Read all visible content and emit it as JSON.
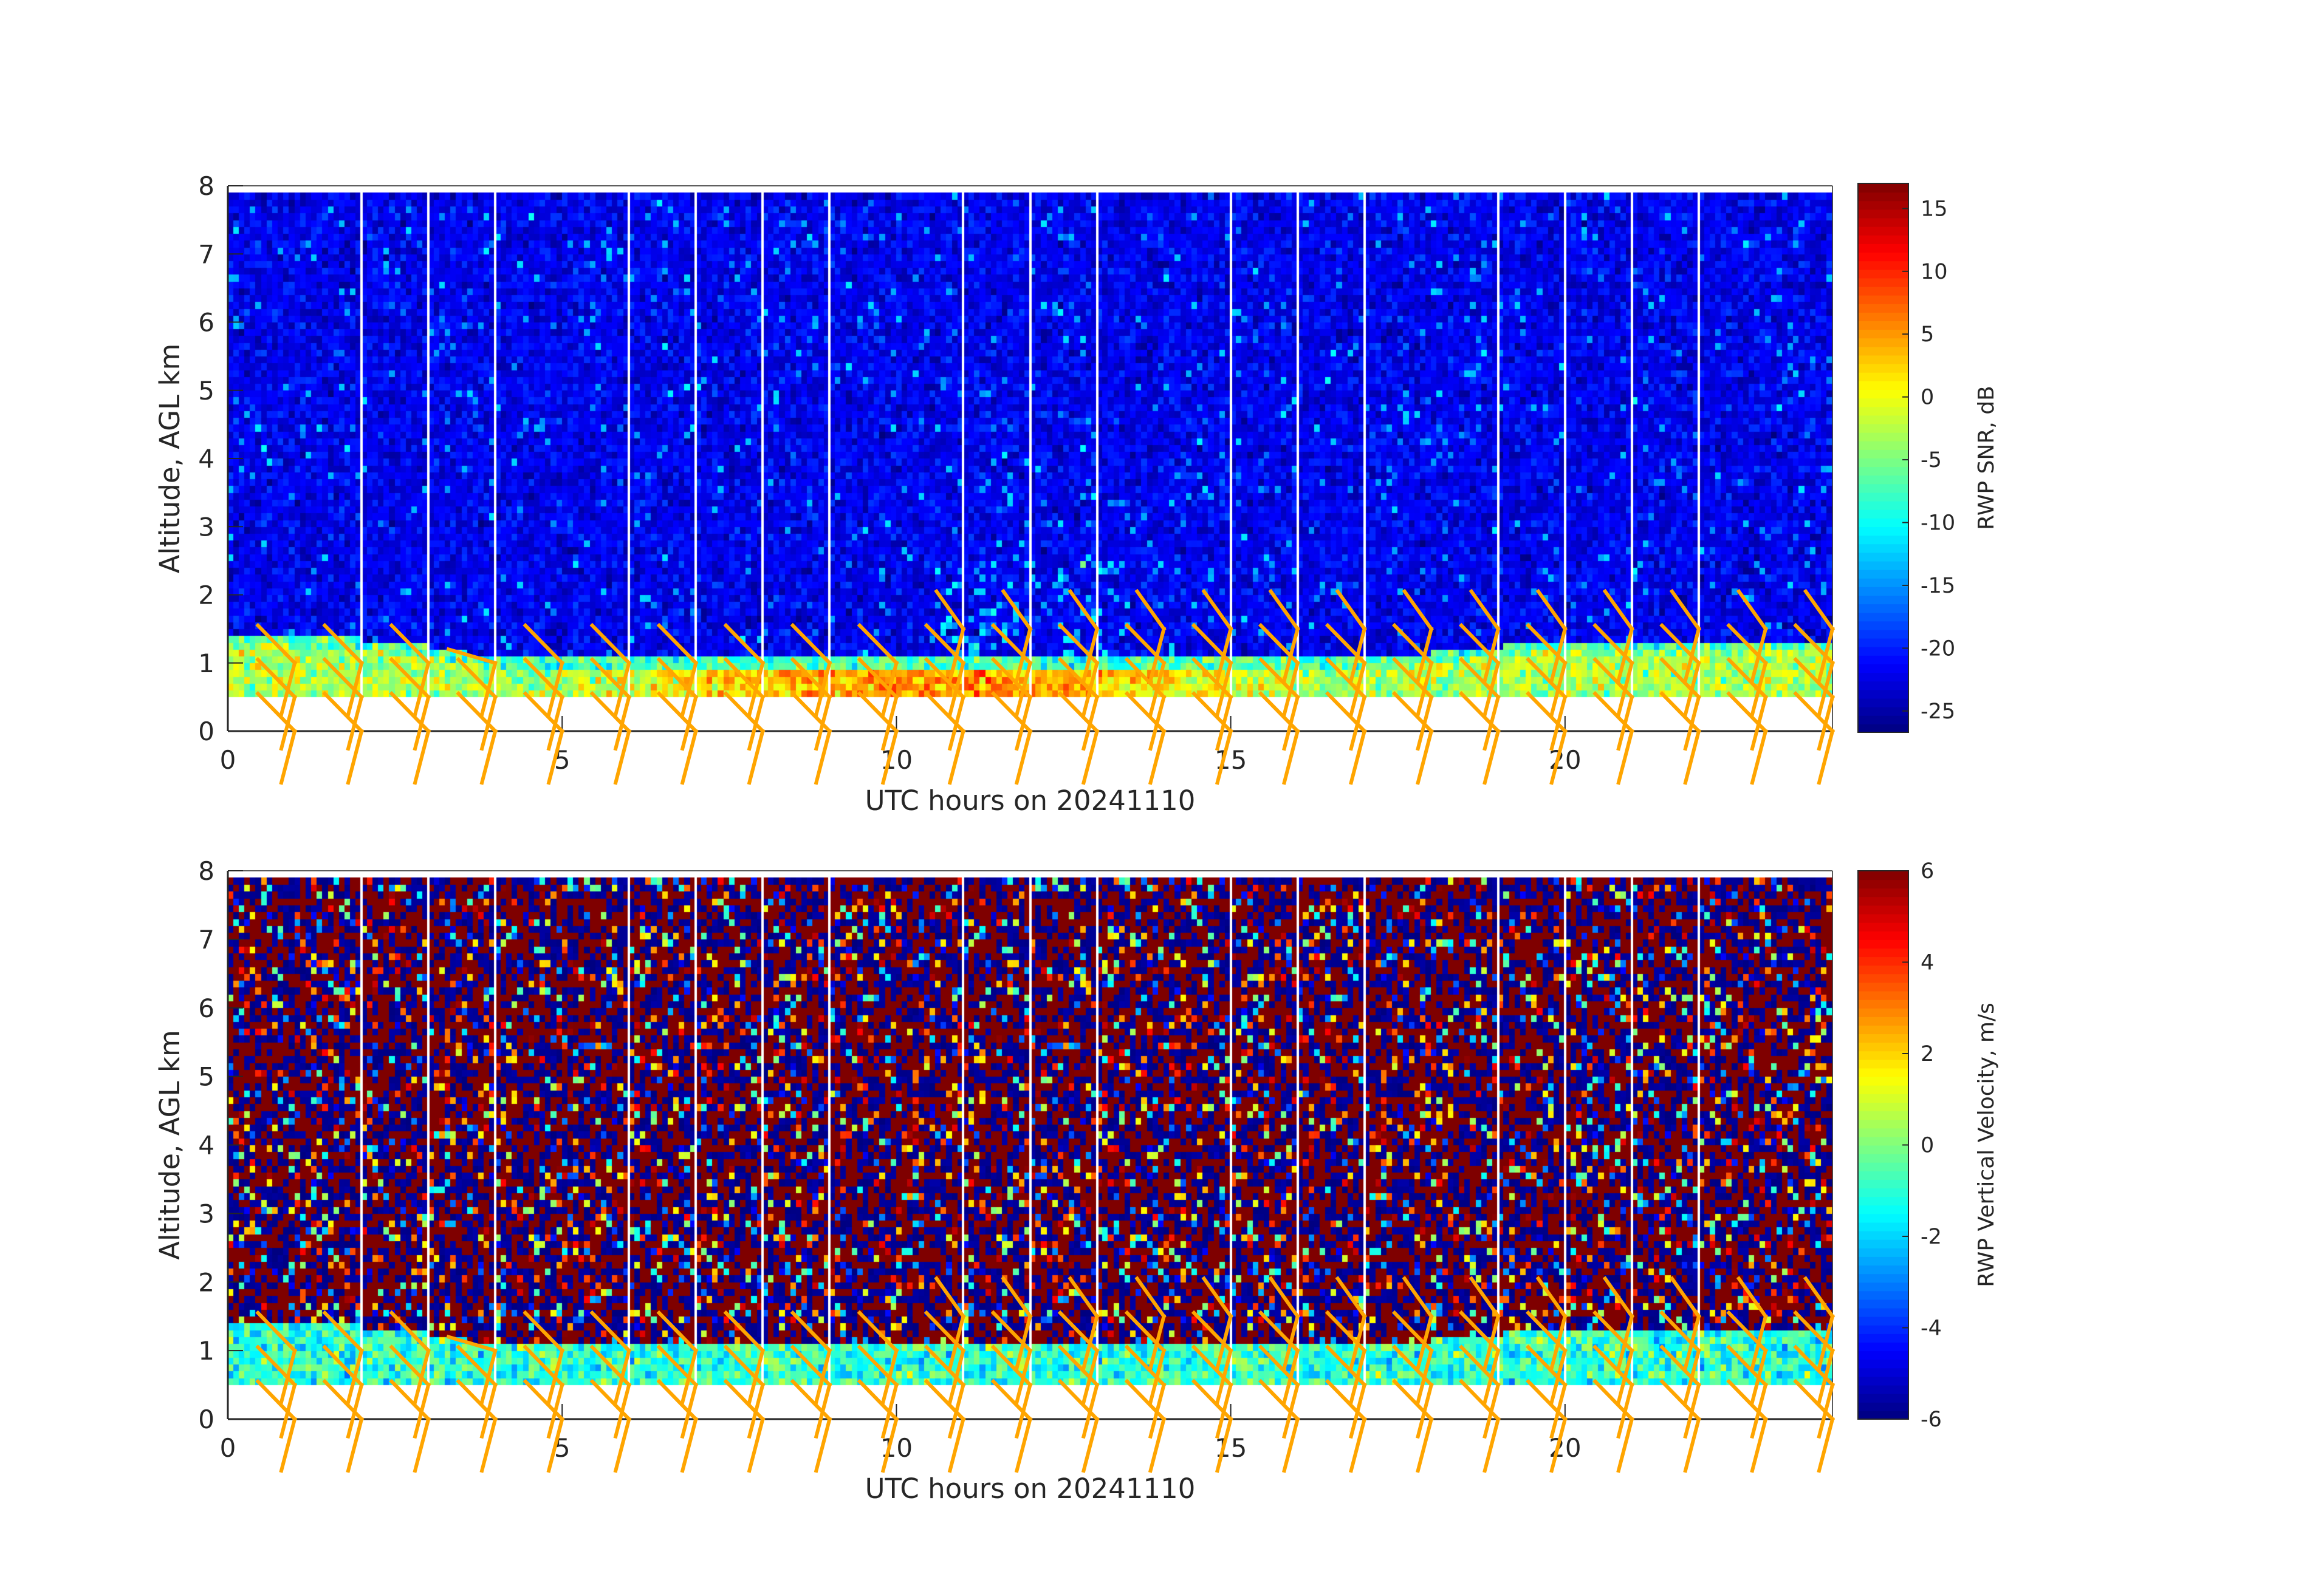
{
  "chart_data": [
    {
      "type": "heatmap",
      "xlabel": "UTC hours on 20241110",
      "ylabel": "Altitude, AGL km",
      "xlim": [
        0,
        24
      ],
      "ylim": [
        0,
        8
      ],
      "xticks": [
        "0",
        "5",
        "10",
        "15",
        "20"
      ],
      "yticks": [
        "0",
        "1",
        "2",
        "3",
        "4",
        "5",
        "6",
        "7",
        "8"
      ],
      "colorbar": {
        "label": "RWP SNR, dB",
        "ticks": [
          "15",
          "10",
          "5",
          "0",
          "-5",
          "-10",
          "-15",
          "-20",
          "-25"
        ],
        "clim": [
          -26.7,
          17
        ],
        "colormap": "jet"
      },
      "missing_data_hours": [
        2,
        3,
        4,
        6,
        7,
        8,
        9,
        11,
        12,
        13,
        15,
        16,
        17,
        19,
        20,
        21,
        22
      ],
      "data_altitude_range_km": [
        0.5,
        7.9
      ],
      "boundary_layer_top_km": [
        1.35,
        1.35,
        1.3,
        1.2,
        1.0,
        1.0,
        1.0,
        1.0,
        1.0,
        1.0,
        1.0,
        1.0,
        1.0,
        1.0,
        1.0,
        1.0,
        1.0,
        1.05,
        1.1,
        1.2,
        1.3,
        1.3,
        1.3,
        1.3,
        1.3
      ],
      "background_value": -22,
      "layer_value": -3,
      "wind_barbs": true
    },
    {
      "type": "heatmap",
      "xlabel": "UTC hours on 20241110",
      "ylabel": "Altitude, AGL km",
      "xlim": [
        0,
        24
      ],
      "ylim": [
        0,
        8
      ],
      "xticks": [
        "0",
        "5",
        "10",
        "15",
        "20"
      ],
      "yticks": [
        "0",
        "1",
        "2",
        "3",
        "4",
        "5",
        "6",
        "7",
        "8"
      ],
      "colorbar": {
        "label": "RWP Vertical Velocity, m/s",
        "ticks": [
          "6",
          "4",
          "2",
          "0",
          "-2",
          "-4",
          "-6"
        ],
        "clim": [
          -6,
          6
        ],
        "colormap": "jet"
      },
      "missing_data_hours": [
        2,
        3,
        4,
        6,
        7,
        8,
        9,
        11,
        12,
        13,
        15,
        16,
        17,
        19,
        20,
        21,
        22
      ],
      "data_altitude_range_km": [
        0.5,
        7.9
      ],
      "boundary_layer_top_km": [
        1.35,
        1.35,
        1.3,
        1.2,
        1.0,
        1.0,
        1.0,
        1.0,
        1.0,
        1.0,
        1.0,
        1.0,
        1.0,
        1.0,
        1.0,
        1.0,
        1.0,
        1.05,
        1.1,
        1.2,
        1.3,
        1.3,
        1.3,
        1.3,
        1.3
      ],
      "layer_value": -1,
      "wind_barbs": true
    }
  ],
  "barb_color": "#FFA500",
  "barb_levels_km": [
    0,
    0.5,
    1.0,
    1.5
  ],
  "upper_barb_start_hour": 11
}
